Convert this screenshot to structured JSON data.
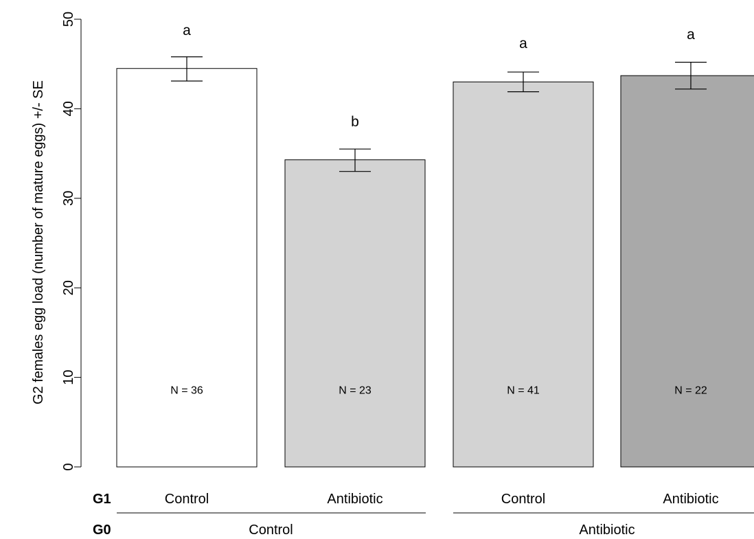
{
  "chart_data": {
    "type": "bar",
    "ylabel": "G2 females egg load (number of mature eggs) +/- SE",
    "ylim": [
      0,
      50
    ],
    "yticks": [
      0,
      10,
      20,
      30,
      40,
      50
    ],
    "ytick_labels": [
      "0",
      "10",
      "20",
      "30",
      "40",
      "50"
    ],
    "bars": [
      {
        "g1": "Control",
        "g0": "Control",
        "value": 44.5,
        "se_low": 43.1,
        "se_high": 45.8,
        "letter": "a",
        "n_label": "N = 36",
        "color": "#ffffff"
      },
      {
        "g1": "Antibiotic",
        "g0": "Control",
        "value": 34.3,
        "se_low": 33.0,
        "se_high": 35.5,
        "letter": "b",
        "n_label": "N = 23",
        "color": "#d3d3d3"
      },
      {
        "g1": "Control",
        "g0": "Antibiotic",
        "value": 43.0,
        "se_low": 41.9,
        "se_high": 44.1,
        "letter": "a",
        "n_label": "N = 41",
        "color": "#d3d3d3"
      },
      {
        "g1": "Antibiotic",
        "g0": "Antibiotic",
        "value": 43.7,
        "se_low": 42.2,
        "se_high": 45.2,
        "letter": "a",
        "n_label": "N = 22",
        "color": "#a9a9a9"
      }
    ],
    "row_labels": {
      "g1": "G1",
      "g0": "G0"
    },
    "g0_groups": [
      {
        "label": "Control",
        "bars": [
          0,
          1
        ]
      },
      {
        "label": "Antibiotic",
        "bars": [
          2,
          3
        ]
      }
    ],
    "grid": false,
    "legend": "none"
  }
}
